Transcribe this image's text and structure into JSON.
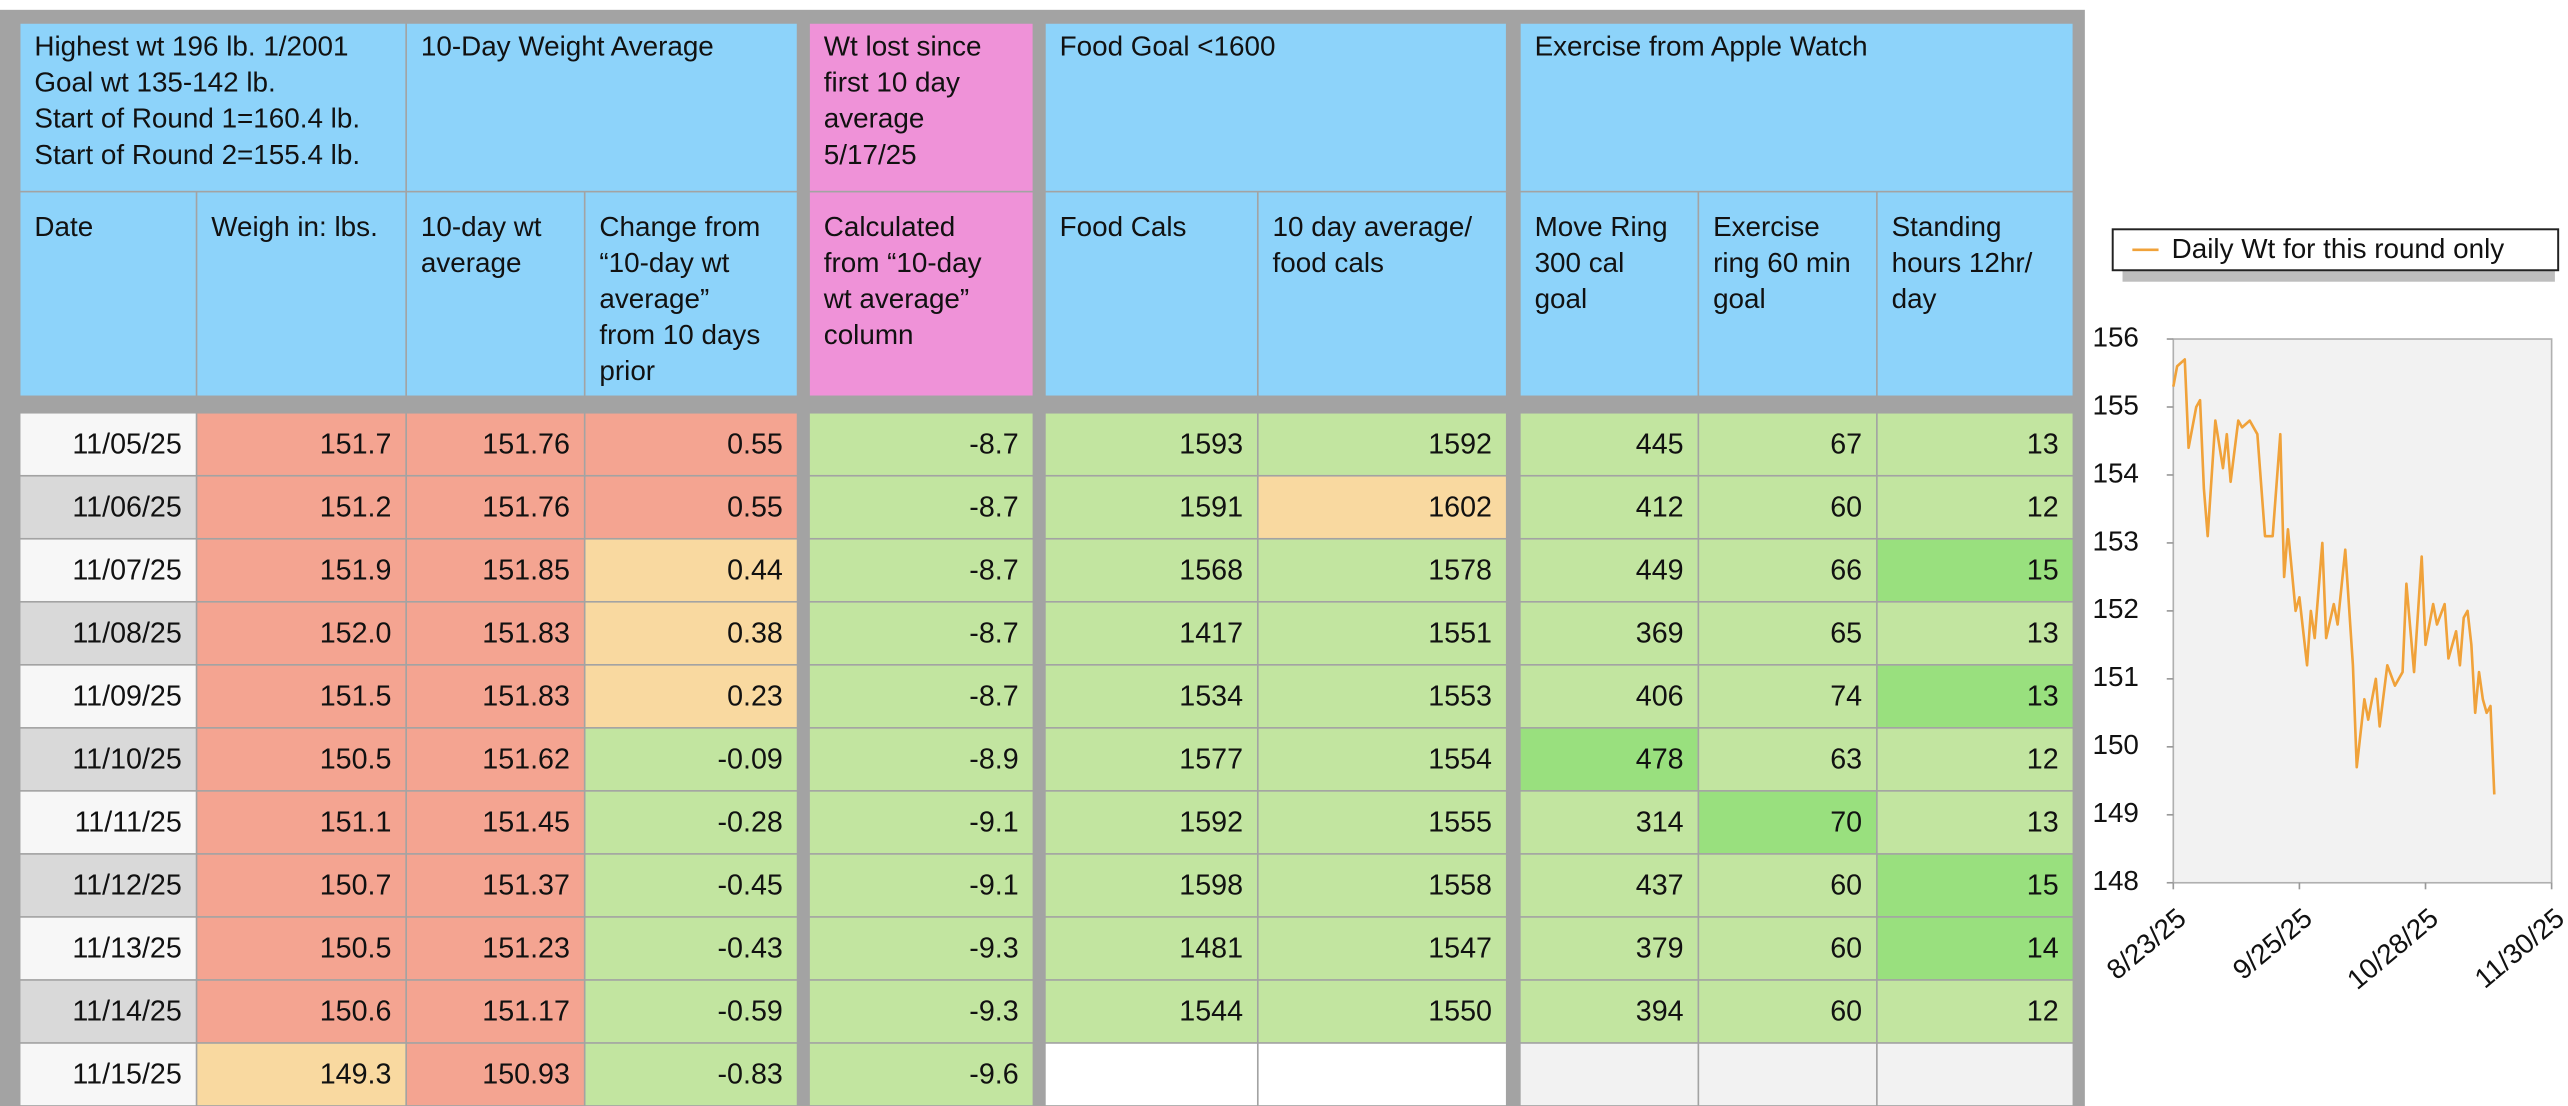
{
  "table": {
    "palette": {
      "b": "#8dd3fa",
      "p": "#ef92d8",
      "d": "#f7f7f7",
      "D": "#d9d9d9",
      "r": "#f4a491",
      "o": "#f9d9a0",
      "g": "#c2e5a0",
      "G": "#99e07e",
      "w": "#ffffff",
      "e": "#f2f2f2"
    },
    "groups": [
      [
        "Highest wt 196 lb.  1/2001",
        "Goal wt 135-142 lb.",
        "Start of Round 1=160.4 lb.",
        "Start of Round 2=155.4 lb."
      ],
      [
        "10-Day Weight Average"
      ],
      [
        "Wt lost since",
        "first 10 day",
        "average",
        "5/17/25"
      ],
      [
        "Food Goal <1600"
      ],
      [
        "Exercise from Apple Watch"
      ]
    ],
    "group_fills": "bbpbb",
    "headers": [
      [
        "Date"
      ],
      [
        "Weigh in: lbs."
      ],
      [
        "10-day wt",
        "average"
      ],
      [
        "Change from",
        "“10-day wt",
        "average”",
        "from 10 days",
        "prior"
      ],
      [
        "Calculated",
        "from “10-day",
        "wt average”",
        "column"
      ],
      [
        "Food Cals"
      ],
      [
        "10 day average/",
        "food cals"
      ],
      [
        "Move Ring",
        "300 cal",
        "goal"
      ],
      [
        "Exercise",
        "ring 60 min",
        "goal"
      ],
      [
        "Standing",
        "hours 12hr/",
        "day"
      ]
    ],
    "header_fills": "bbbbpbbbbb",
    "rows": [
      [
        "11/05/25",
        "151.7",
        "151.76",
        "0.55",
        "-8.7",
        "1593",
        "1592",
        "445",
        "67",
        "13"
      ],
      [
        "11/06/25",
        "151.2",
        "151.76",
        "0.55",
        "-8.7",
        "1591",
        "1602",
        "412",
        "60",
        "12"
      ],
      [
        "11/07/25",
        "151.9",
        "151.85",
        "0.44",
        "-8.7",
        "1568",
        "1578",
        "449",
        "66",
        "15"
      ],
      [
        "11/08/25",
        "152.0",
        "151.83",
        "0.38",
        "-8.7",
        "1417",
        "1551",
        "369",
        "65",
        "13"
      ],
      [
        "11/09/25",
        "151.5",
        "151.83",
        "0.23",
        "-8.7",
        "1534",
        "1553",
        "406",
        "74",
        "13"
      ],
      [
        "11/10/25",
        "150.5",
        "151.62",
        "-0.09",
        "-8.9",
        "1577",
        "1554",
        "478",
        "63",
        "12"
      ],
      [
        "11/11/25",
        "151.1",
        "151.45",
        "-0.28",
        "-9.1",
        "1592",
        "1555",
        "314",
        "70",
        "13"
      ],
      [
        "11/12/25",
        "150.7",
        "151.37",
        "-0.45",
        "-9.1",
        "1598",
        "1558",
        "437",
        "60",
        "15"
      ],
      [
        "11/13/25",
        "150.5",
        "151.23",
        "-0.43",
        "-9.3",
        "1481",
        "1547",
        "379",
        "60",
        "14"
      ],
      [
        "11/14/25",
        "150.6",
        "151.17",
        "-0.59",
        "-9.3",
        "1544",
        "1550",
        "394",
        "60",
        "12"
      ],
      [
        "11/15/25",
        "149.3",
        "150.93",
        "-0.83",
        "-9.6"
      ]
    ],
    "fills": [
      "drrrgggggg",
      "Drrrggoggg",
      "drrogggggG",
      "Drrogggggg",
      "drrogggggGg",
      "DrrggggGgg",
      "drrgggggGg",
      "DrrggggggG",
      "drrggggggG",
      "Drrggggggg",
      "dorggwweee"
    ]
  },
  "chart_data": {
    "type": "line",
    "x": [
      "8/23/25",
      "8/24/25",
      "8/26/25",
      "8/27/25",
      "8/29/25",
      "8/30/25",
      "8/31/25",
      "9/1/25",
      "9/3/25",
      "9/5/25",
      "9/6/25",
      "9/7/25",
      "9/9/25",
      "9/10/25",
      "9/12/25",
      "9/14/25",
      "9/16/25",
      "9/18/25",
      "9/20/25",
      "9/21/25",
      "9/22/25",
      "9/24/25",
      "9/25/25",
      "9/27/25",
      "9/28/25",
      "9/29/25",
      "10/1/25",
      "10/2/25",
      "10/4/25",
      "10/5/25",
      "10/7/25",
      "10/9/25",
      "10/10/25",
      "10/12/25",
      "10/13/25",
      "10/15/25",
      "10/16/25",
      "10/18/25",
      "10/20/25",
      "10/22/25",
      "10/23/25",
      "10/25/25",
      "10/27/25",
      "10/28/25",
      "10/30/25",
      "10/31/25",
      "11/2/25",
      "11/3/25",
      "11/5/25",
      "11/6/25",
      "11/7/25",
      "11/8/25",
      "11/9/25",
      "11/10/25",
      "11/11/25",
      "11/12/25",
      "11/13/25",
      "11/14/25",
      "11/15/25"
    ],
    "series": [
      {
        "name": "Daily Wt for this round only",
        "color": "#f0a23a",
        "values": [
          155.3,
          155.6,
          155.7,
          154.4,
          155.0,
          155.1,
          153.8,
          153.1,
          154.8,
          154.1,
          154.6,
          153.9,
          154.8,
          154.7,
          154.8,
          154.6,
          153.1,
          153.1,
          154.6,
          152.5,
          153.2,
          152.0,
          152.2,
          151.2,
          152.0,
          151.6,
          153.0,
          151.6,
          152.1,
          151.8,
          152.9,
          151.2,
          149.7,
          150.7,
          150.4,
          151.0,
          150.3,
          151.2,
          150.9,
          151.1,
          152.4,
          151.1,
          152.8,
          151.5,
          152.1,
          151.8,
          152.1,
          151.3,
          151.7,
          151.2,
          151.9,
          152.0,
          151.5,
          150.5,
          151.1,
          150.7,
          150.5,
          150.6,
          149.3
        ]
      }
    ],
    "xlim": [
      "8/23/25",
      "11/30/25"
    ],
    "xticks": [
      "8/23/25",
      "9/25/25",
      "10/28/25",
      "11/30/25"
    ],
    "ylim": [
      148,
      156
    ],
    "yticks": [
      148,
      149,
      150,
      151,
      152,
      153,
      154,
      155,
      156
    ],
    "legend": "top",
    "plot_background": "#f2f2f2"
  }
}
